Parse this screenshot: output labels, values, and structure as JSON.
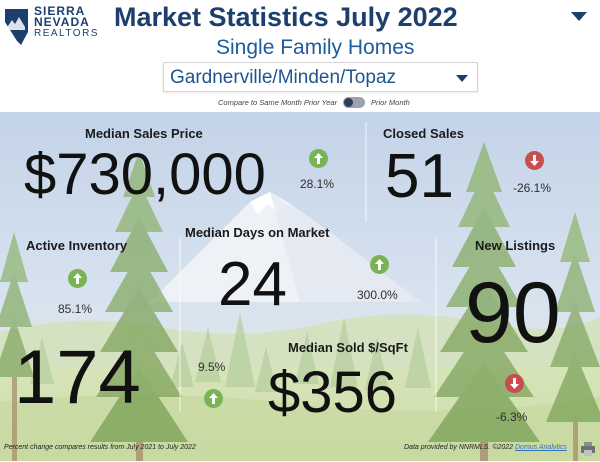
{
  "header": {
    "logo": {
      "line1": "SIERRA",
      "line2": "NEVADA",
      "line3": "REALTORS"
    },
    "title": "Market Statistics  July 2022",
    "subtitle": "Single Family Homes",
    "location_select": {
      "value": "Gardnerville/Minden/Topaz"
    },
    "compare_toggle": {
      "left_label": "Compare to Same Month Prior Year",
      "right_label": "Prior Month",
      "state": "off"
    }
  },
  "metrics": {
    "median_sales_price": {
      "label": "Median Sales Price",
      "value": "$730,000",
      "change": "28.1%",
      "direction": "up"
    },
    "closed_sales": {
      "label": "Closed Sales",
      "value": "51",
      "change": "-26.1%",
      "direction": "down"
    },
    "active_inventory": {
      "label": "Active Inventory",
      "value": "174",
      "change": "85.1%",
      "direction": "up"
    },
    "median_days_on_market": {
      "label": "Median Days on Market",
      "value": "24",
      "change": "300.0%",
      "direction": "up"
    },
    "new_listings": {
      "label": "New Listings",
      "value": "90",
      "change": "-6.3%",
      "direction": "down"
    },
    "median_sold_sqft": {
      "label": "Median Sold $/SqFt",
      "value": "$356",
      "change": "9.5%",
      "direction": "up"
    }
  },
  "footer": {
    "left": "Percent change compares results from July 2021 to July 2022",
    "right_prefix": "Data provided by NNRMLS. ©2022",
    "right_link": "Domus Analytics"
  },
  "colors": {
    "navy": "#1d3f6e",
    "blue": "#1f5c9c",
    "up_green": "#7ab356",
    "down_red": "#c94d4d",
    "sky": "#c9d8ea"
  },
  "icons": {
    "top_menu": "chevron-down-icon",
    "select": "chevron-down-icon",
    "up": "arrow-up-icon",
    "down": "arrow-down-icon",
    "print": "printer-icon"
  }
}
